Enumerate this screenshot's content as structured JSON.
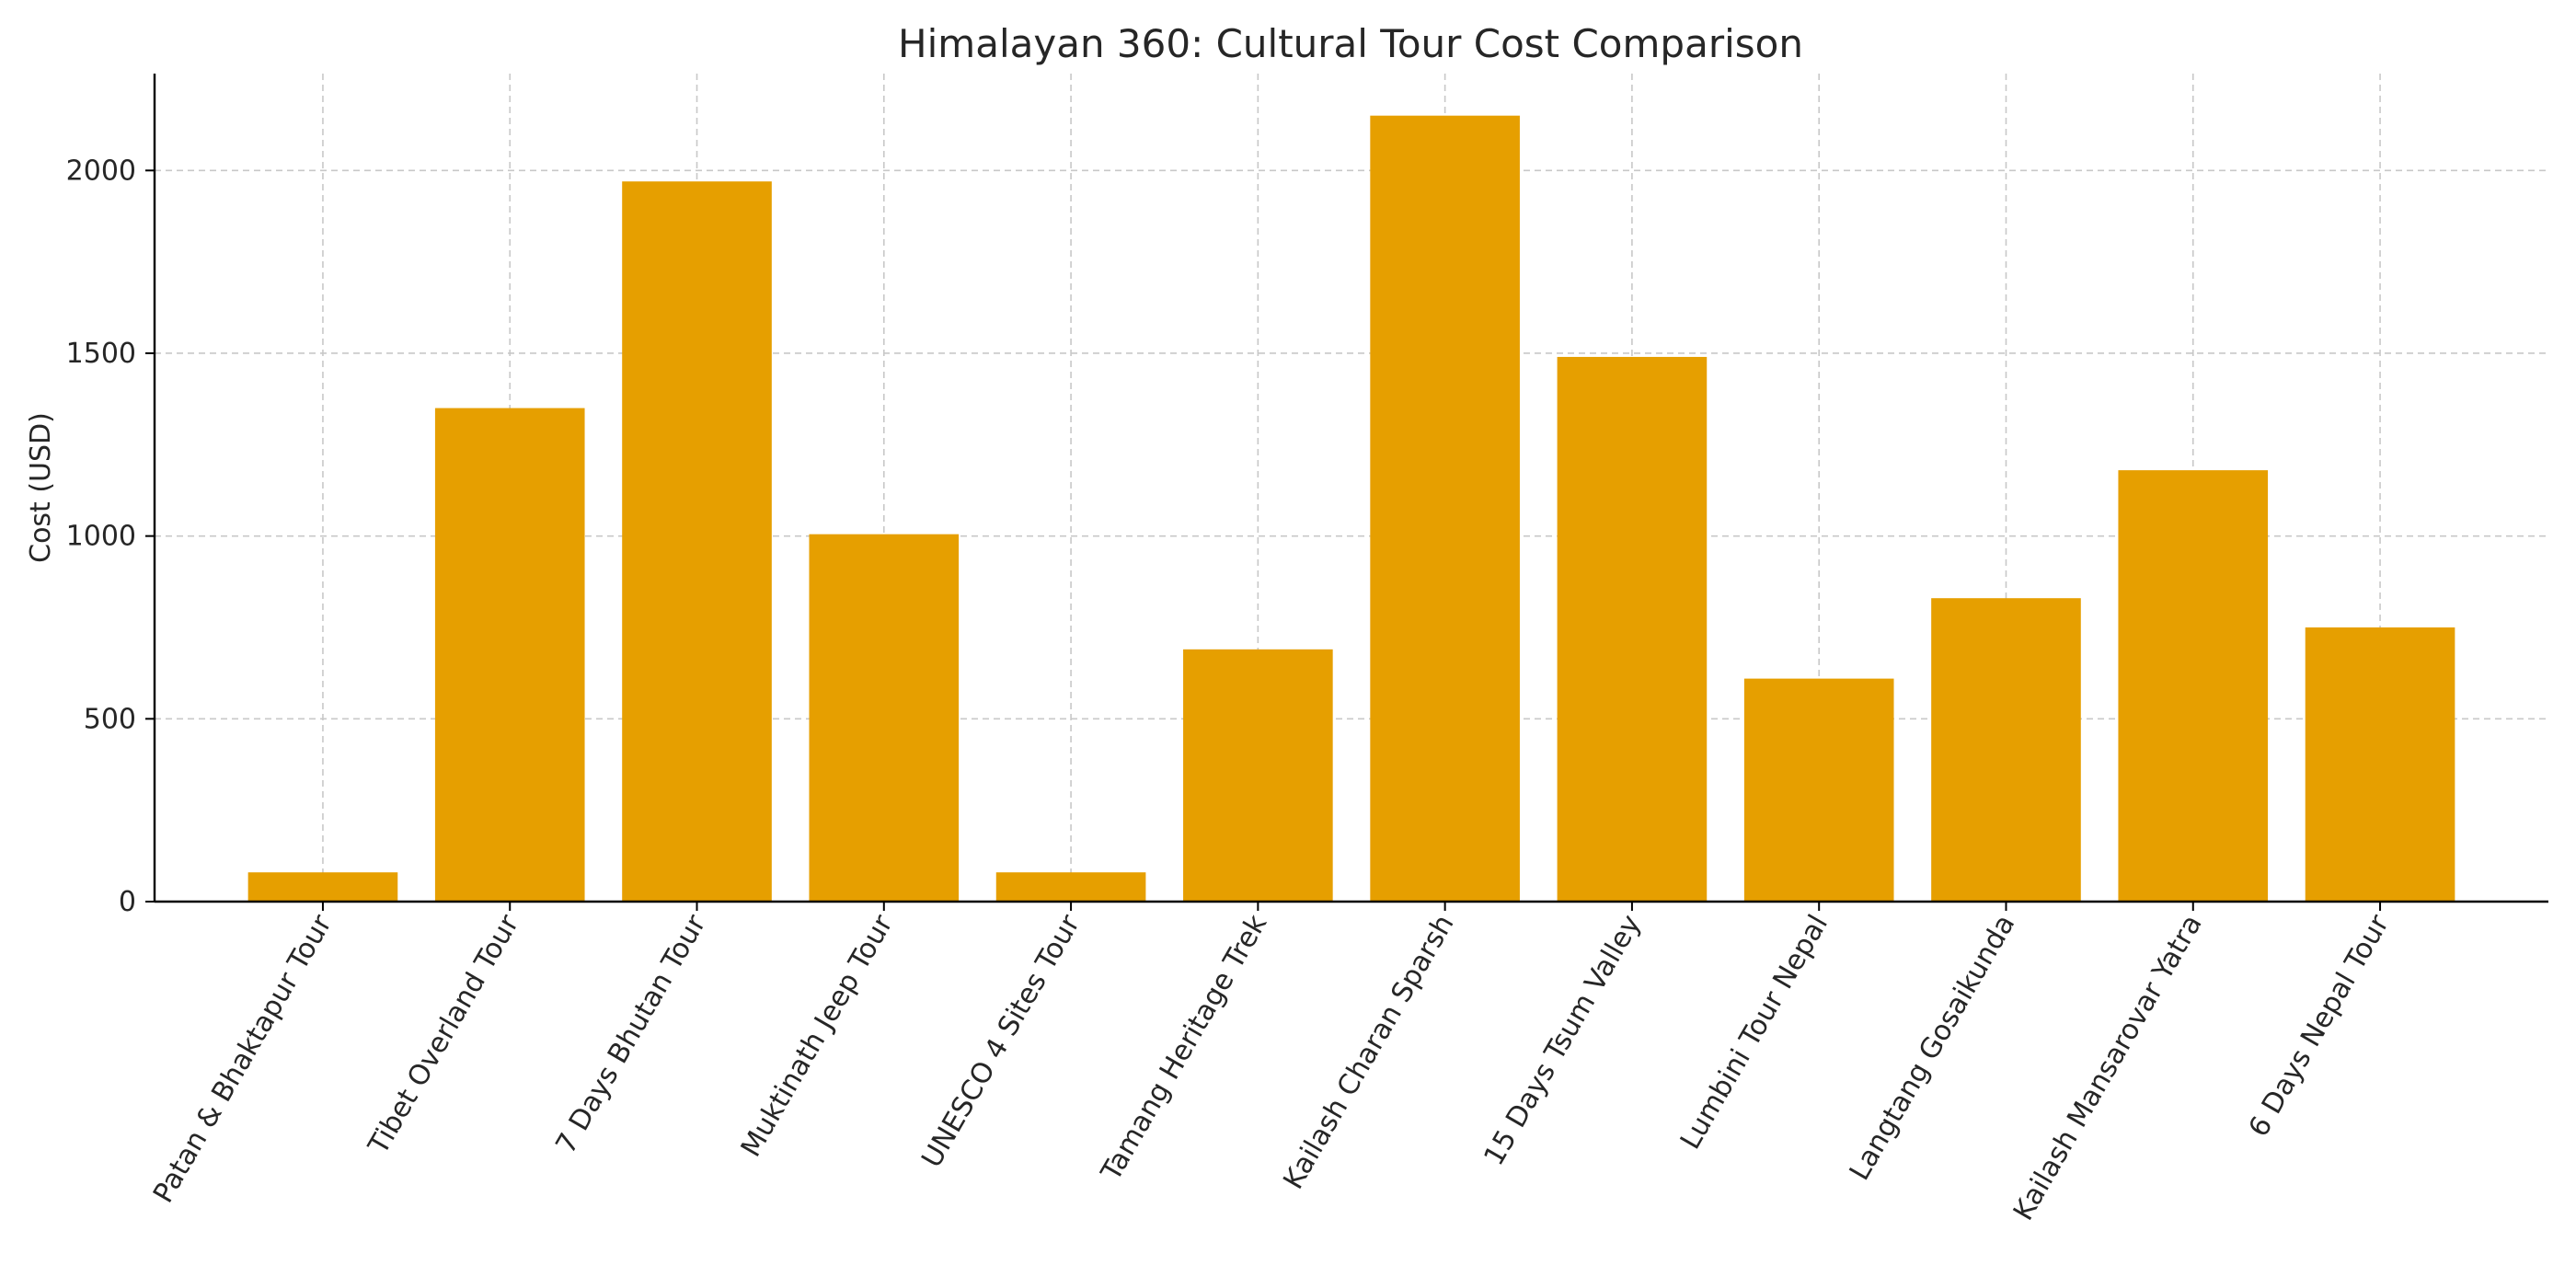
{
  "chart_data": {
    "type": "bar",
    "title": "Himalayan 360: Cultural Tour Cost Comparison",
    "xlabel": "",
    "ylabel": "Cost (USD)",
    "categories": [
      "Patan & Bhaktapur Tour",
      "Tibet Overland Tour",
      "7 Days Bhutan Tour",
      "Muktinath Jeep Tour",
      "UNESCO 4 Sites Tour",
      "Tamang Heritage Trek",
      "Kailash Charan Sparsh",
      "15 Days Tsum Valley",
      "Lumbini Tour Nepal",
      "Langtang Gosaikunda",
      "Kailash Mansarovar Yatra",
      "6 Days Nepal Tour"
    ],
    "values": [
      80,
      1350,
      1970,
      1005,
      80,
      690,
      2150,
      1490,
      610,
      830,
      1180,
      750
    ],
    "ylim": [
      0,
      2265
    ],
    "yticks": [
      0,
      500,
      1000,
      1500,
      2000
    ],
    "grid": true,
    "colors": {
      "bar": "#E69F00"
    }
  }
}
